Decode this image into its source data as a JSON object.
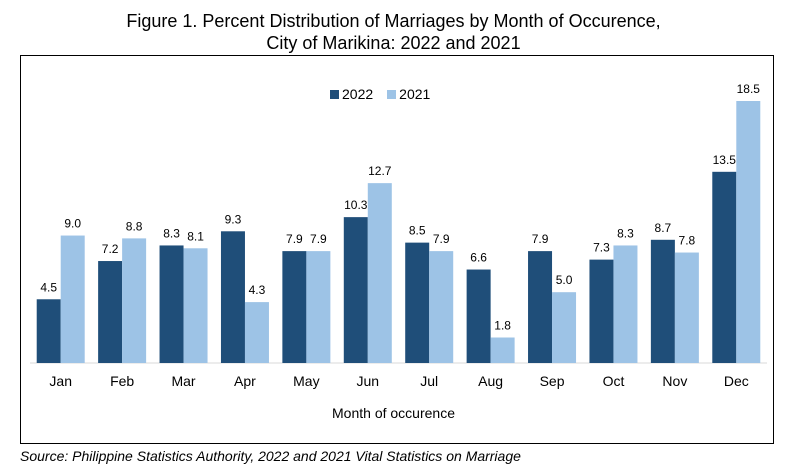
{
  "title_line1": "Figure 1. Percent Distribution of Marriages by Month of Occurence,",
  "title_line2": "City of Marikina: 2022 and 2021",
  "source": "Source: Philippine Statistics Authority, 2022 and 2021 Vital Statistics on Marriage",
  "chart_data": {
    "type": "bar",
    "title": "Figure 1. Percent Distribution of Marriages by Month of Occurence, City of Marikina: 2022 and 2021",
    "xlabel": "Month of occurence",
    "ylabel": "",
    "categories": [
      "Jan",
      "Feb",
      "Mar",
      "Apr",
      "May",
      "Jun",
      "Jul",
      "Aug",
      "Sep",
      "Oct",
      "Nov",
      "Dec"
    ],
    "series": [
      {
        "name": "2022",
        "color": "#1F4E79",
        "values": [
          4.5,
          7.2,
          8.3,
          9.3,
          7.9,
          10.3,
          8.5,
          6.6,
          7.9,
          7.3,
          8.7,
          13.5
        ]
      },
      {
        "name": "2021",
        "color": "#9DC3E6",
        "values": [
          9.0,
          8.8,
          8.1,
          4.3,
          7.9,
          12.7,
          7.9,
          1.8,
          5.0,
          8.3,
          7.8,
          18.5
        ]
      }
    ],
    "ylim": [
      0,
      20
    ],
    "grid": false,
    "legend_position": "top-center",
    "data_labels": true
  }
}
